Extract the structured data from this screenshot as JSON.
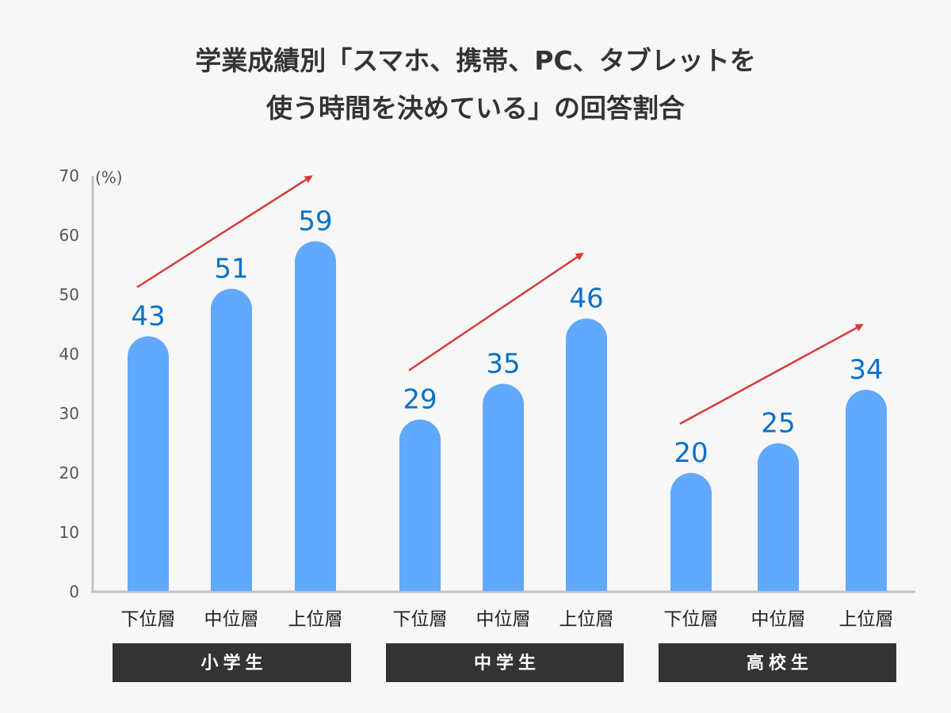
{
  "chart_data": {
    "type": "bar",
    "title_lines": [
      "学業成績別「スマホ、携帯、PC、タブレットを",
      "使う時間を決めている」の回答割合"
    ],
    "ylabel": "(%)",
    "ylim": [
      0,
      70
    ],
    "yticks": [
      0,
      10,
      20,
      30,
      40,
      50,
      60,
      70
    ],
    "grid": false,
    "groups": [
      {
        "label": "小学生",
        "categories": [
          "下位層",
          "中位層",
          "上位層"
        ],
        "values": [
          43,
          51,
          59
        ]
      },
      {
        "label": "中学生",
        "categories": [
          "下位層",
          "中位層",
          "上位層"
        ],
        "values": [
          29,
          35,
          46
        ]
      },
      {
        "label": "高校生",
        "categories": [
          "下位層",
          "中位層",
          "上位層"
        ],
        "values": [
          20,
          25,
          34
        ]
      }
    ],
    "annotations": [
      "upward trend arrow per group"
    ],
    "colors": {
      "bar": "#61a8ff",
      "value_label": "#0a70c8",
      "arrow": "#d63a3a",
      "group_box": "#333333",
      "axis": "#bfc4c8"
    }
  }
}
